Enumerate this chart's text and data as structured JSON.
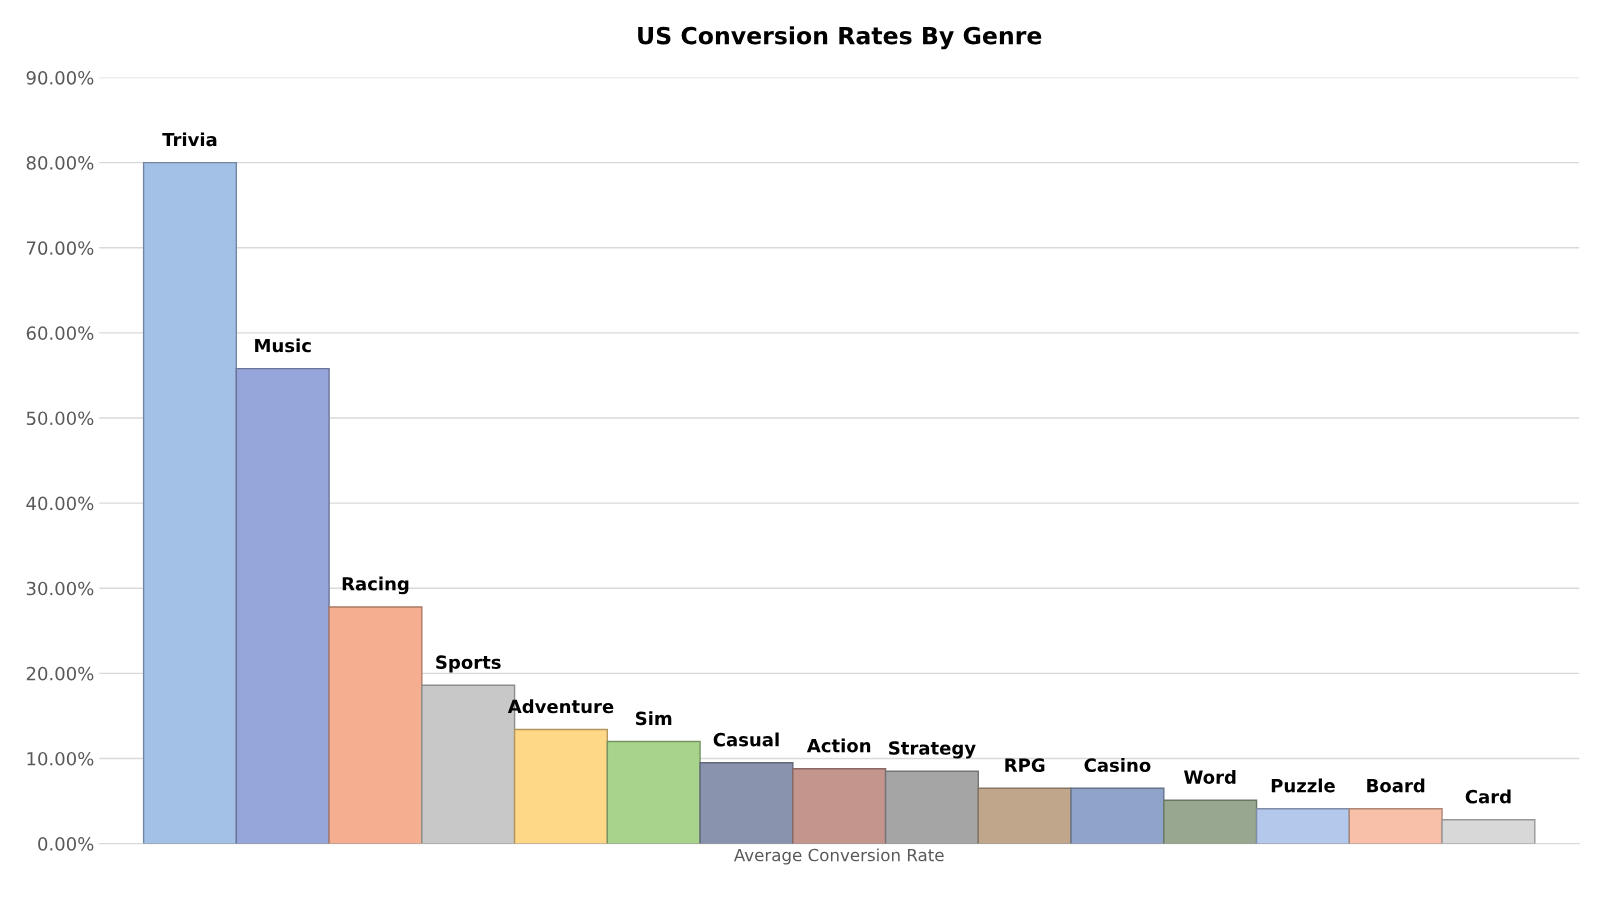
{
  "chart_data": {
    "type": "bar",
    "title": "US Conversion Rates By Genre",
    "categories": [
      "Average Conversion Rate"
    ],
    "series": [
      {
        "name": "Trivia",
        "color": "#a3c0e6",
        "values": [
          80.0
        ]
      },
      {
        "name": "Music",
        "color": "#96a6da",
        "values": [
          55.8
        ]
      },
      {
        "name": "Racing",
        "color": "#f5ae90",
        "values": [
          27.8
        ]
      },
      {
        "name": "Sports",
        "color": "#c8c8c8",
        "values": [
          18.6
        ]
      },
      {
        "name": "Adventure",
        "color": "#fed787",
        "values": [
          13.4
        ]
      },
      {
        "name": "Sim",
        "color": "#a8d38c",
        "values": [
          12.0
        ]
      },
      {
        "name": "Casual",
        "color": "#8a93ae",
        "values": [
          9.5
        ]
      },
      {
        "name": "Action",
        "color": "#c4958d",
        "values": [
          8.8
        ]
      },
      {
        "name": "Strategy",
        "color": "#a5a5a5",
        "values": [
          8.5
        ]
      },
      {
        "name": "RPG",
        "color": "#c0a68a",
        "values": [
          6.5
        ]
      },
      {
        "name": "Casino",
        "color": "#8ea4c8",
        "values": [
          6.5
        ]
      },
      {
        "name": "Word",
        "color": "#98a890",
        "values": [
          5.1
        ]
      },
      {
        "name": "Puzzle",
        "color": "#b4c8ec",
        "values": [
          4.1
        ]
      },
      {
        "name": "Board",
        "color": "#f8c0a8",
        "values": [
          4.1
        ]
      },
      {
        "name": "Card",
        "color": "#d8d8d8",
        "values": [
          2.8
        ]
      }
    ],
    "ylim": [
      0,
      90
    ],
    "yticks": [
      {
        "value": 0,
        "label": "0.00%"
      },
      {
        "value": 10,
        "label": "10.00%"
      },
      {
        "value": 20,
        "label": "20.00%"
      },
      {
        "value": 30,
        "label": "30.00%"
      },
      {
        "value": 40,
        "label": "40.00%"
      },
      {
        "value": 50,
        "label": "50.00%"
      },
      {
        "value": 60,
        "label": "60.00%"
      },
      {
        "value": 70,
        "label": "70.00%"
      },
      {
        "value": 80,
        "label": "80.00%"
      },
      {
        "value": 90,
        "label": "90.00%"
      }
    ],
    "grid": "y",
    "legend": false
  }
}
